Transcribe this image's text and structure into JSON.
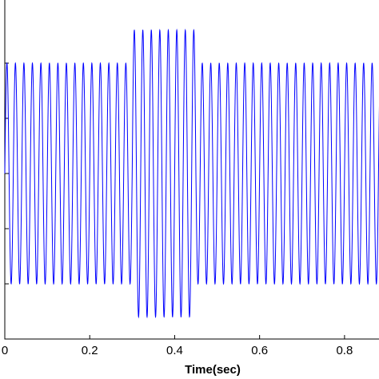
{
  "chart_data": {
    "type": "line",
    "title": "",
    "xlabel": "Time(sec)",
    "ylabel": "",
    "xlim": [
      0,
      0.9
    ],
    "x_ticks": [
      0,
      0.2,
      0.4,
      0.6,
      0.8
    ],
    "x_tick_labels": [
      "0",
      "0.2",
      "0.4",
      "0.6",
      "0.8"
    ],
    "y_ticks_count": 6,
    "grid": false,
    "legend": "none",
    "series": [
      {
        "color": "#0000ff",
        "frequency_hz": 50,
        "segments": [
          {
            "x_start": 0.0,
            "x_end": 0.3,
            "amplitude": 1.0
          },
          {
            "x_start": 0.3,
            "x_end": 0.45,
            "amplitude": 1.3
          },
          {
            "x_start": 0.45,
            "x_end": 0.9,
            "amplitude": 1.0
          }
        ]
      }
    ]
  }
}
